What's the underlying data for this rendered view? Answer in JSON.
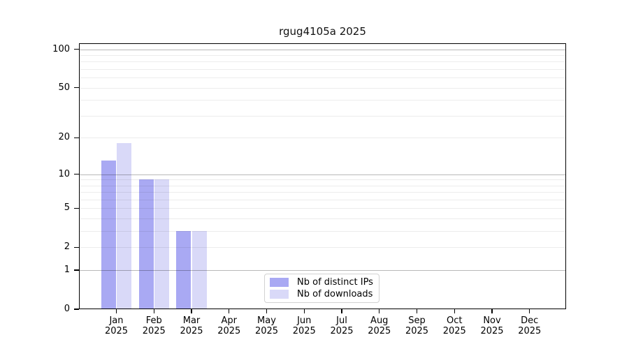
{
  "chart_data": {
    "type": "bar",
    "title": "rgug4105a 2025",
    "year": "2025",
    "months": [
      "Jan",
      "Feb",
      "Mar",
      "Apr",
      "May",
      "Jun",
      "Jul",
      "Aug",
      "Sep",
      "Oct",
      "Nov",
      "Dec"
    ],
    "series": [
      {
        "name": "Nb of distinct IPs",
        "color": "#a9a9f3",
        "values": [
          13,
          9,
          3,
          0,
          0,
          0,
          0,
          0,
          0,
          0,
          0,
          0
        ]
      },
      {
        "name": "Nb of downloads",
        "color": "#d9d9f8",
        "values": [
          18,
          9,
          3,
          0,
          0,
          0,
          0,
          0,
          0,
          0,
          0,
          0
        ]
      }
    ],
    "y_axis": {
      "scale": "log1p",
      "tick_labels": [
        0,
        1,
        2,
        5,
        10,
        20,
        50,
        100
      ],
      "major_gridlines": [
        1,
        10,
        100
      ],
      "minor_gridlines": [
        2,
        3,
        4,
        5,
        6,
        7,
        8,
        9,
        20,
        30,
        40,
        50,
        60,
        70,
        80,
        90
      ],
      "range": [
        0,
        100
      ]
    },
    "x_axis": {
      "label_format": "month-newline-year"
    },
    "legend": {
      "position": "inside-bottom-center",
      "border_color": "#d2d2d2"
    },
    "colors": {
      "axis": "#000000",
      "background": "#ffffff"
    }
  }
}
